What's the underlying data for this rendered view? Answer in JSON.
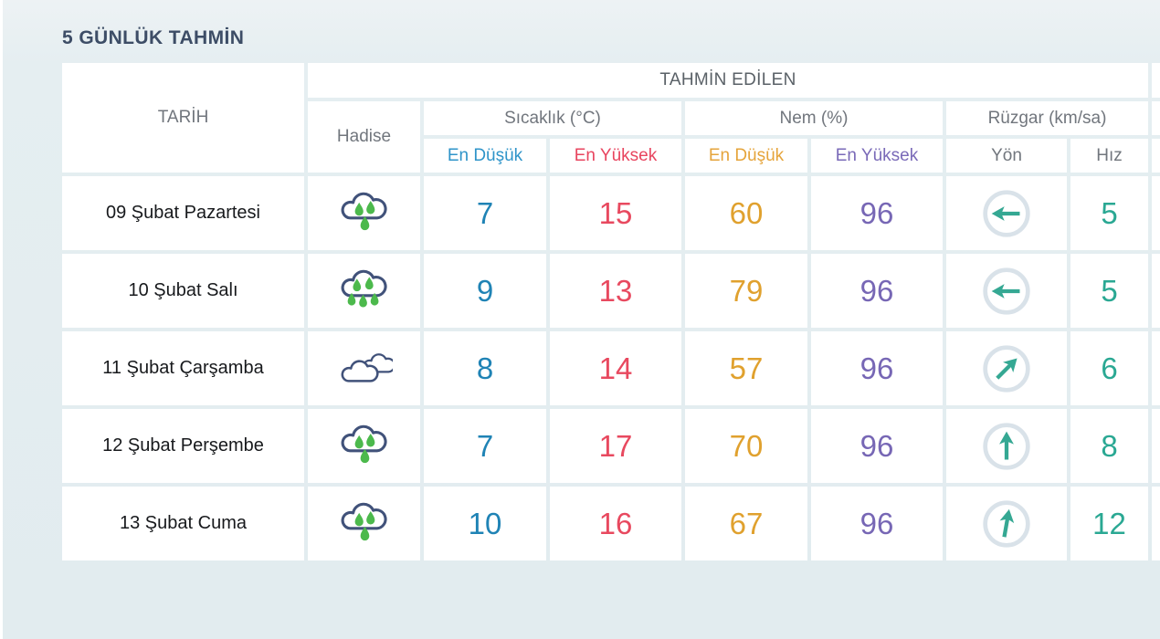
{
  "page": {
    "title": "5 GÜNLÜK TAHMİN"
  },
  "table": {
    "header": {
      "date": "TARİH",
      "predicted": "TAHMİN EDİLEN",
      "event": "Hadise",
      "temperature": "Sıcaklık (°C)",
      "humidity": "Nem (%)",
      "wind": "Rüzgar (km/sa)",
      "temp_min": "En Düşük",
      "temp_max": "En Yüksek",
      "hum_min": "En Düşük",
      "hum_max": "En Yüksek",
      "wind_dir": "Yön",
      "wind_speed": "Hız"
    },
    "rows": [
      {
        "date": "09 Şubat Pazartesi",
        "icon": "rainy",
        "temp_min": "7",
        "temp_max": "15",
        "hum_min": "60",
        "hum_max": "96",
        "wind": {
          "icon": "wind-arrow",
          "rotation": -90
        },
        "wind_speed": "5"
      },
      {
        "date": "10 Şubat Salı",
        "icon": "heavy-rain",
        "temp_min": "9",
        "temp_max": "13",
        "hum_min": "79",
        "hum_max": "96",
        "wind": {
          "icon": "wind-arrow",
          "rotation": -90
        },
        "wind_speed": "5"
      },
      {
        "date": "11 Şubat Çarşamba",
        "icon": "cloudy",
        "temp_min": "8",
        "temp_max": "14",
        "hum_min": "57",
        "hum_max": "96",
        "wind": {
          "icon": "wind-arrow",
          "rotation": 45
        },
        "wind_speed": "6"
      },
      {
        "date": "12 Şubat Perşembe",
        "icon": "rainy",
        "temp_min": "7",
        "temp_max": "17",
        "hum_min": "70",
        "hum_max": "96",
        "wind": {
          "icon": "wind-arrow",
          "rotation": 0
        },
        "wind_speed": "8"
      },
      {
        "date": "13 Şubat Cuma",
        "icon": "rainy",
        "temp_min": "10",
        "temp_max": "16",
        "hum_min": "67",
        "hum_max": "96",
        "wind": {
          "icon": "wind-arrow",
          "rotation": 10
        },
        "wind_speed": "12"
      }
    ]
  },
  "colors": {
    "page_bg": "#e3edf0",
    "cell_bg": "#ffffff",
    "title": "#3d4d66",
    "header_gray": "#71767d",
    "predicted_gray": "#5a6167",
    "date_text": "#17191c",
    "temp_min_header": "#2f94c9",
    "temp_max_header": "#e8455f",
    "hum_min_header": "#e5a43b",
    "hum_max_header": "#7a6ab8",
    "temp_min": "#1f83b5",
    "temp_max": "#e8495f",
    "hum_min": "#e0a12e",
    "hum_max": "#7767b5",
    "wind_speed": "#2aa893",
    "wind_arrow": "#35a893",
    "wind_circle": "#d9e2e9",
    "cloud_outline": "#41527a",
    "rain_drop": "#4cb94c"
  }
}
